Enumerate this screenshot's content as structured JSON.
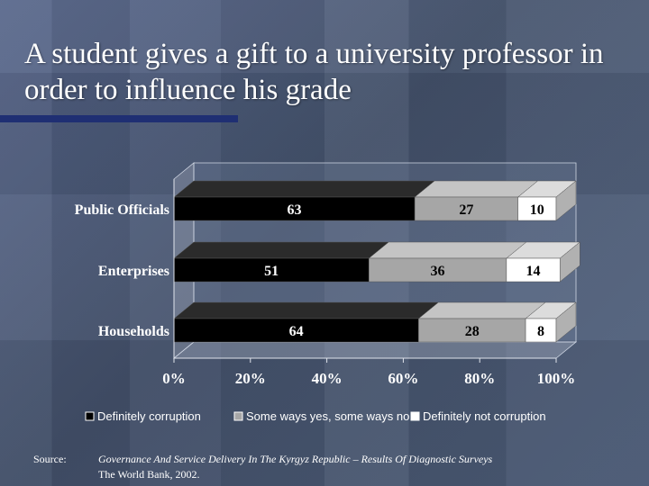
{
  "slide": {
    "title": "A student gives a gift to a university professor in order to influence his grade"
  },
  "source": {
    "label": "Source:",
    "line1": "Governance And Service Delivery In The Kyrgyz Republic – Results Of Diagnostic Surveys",
    "line2": "The World Bank, 2002."
  },
  "colors": {
    "background": "#4e5d78",
    "series": [
      "#000000",
      "#a6a6a6",
      "#ffffff"
    ]
  },
  "chart_data": {
    "type": "bar",
    "orientation": "horizontal",
    "stacked": true,
    "percent": true,
    "categories": [
      "Public Officials",
      "Enterprises",
      "Households"
    ],
    "series": [
      {
        "name": "Definitely corruption",
        "values": [
          63,
          51,
          64
        ]
      },
      {
        "name": "Some ways yes, some ways no",
        "values": [
          27,
          36,
          28
        ]
      },
      {
        "name": "Definitely not corruption",
        "values": [
          10,
          14,
          8
        ]
      }
    ],
    "xticks": [
      "0%",
      "20%",
      "40%",
      "60%",
      "80%",
      "100%"
    ],
    "xlim": [
      0,
      100
    ],
    "legend_position": "bottom",
    "grid": false,
    "style": "3d"
  }
}
